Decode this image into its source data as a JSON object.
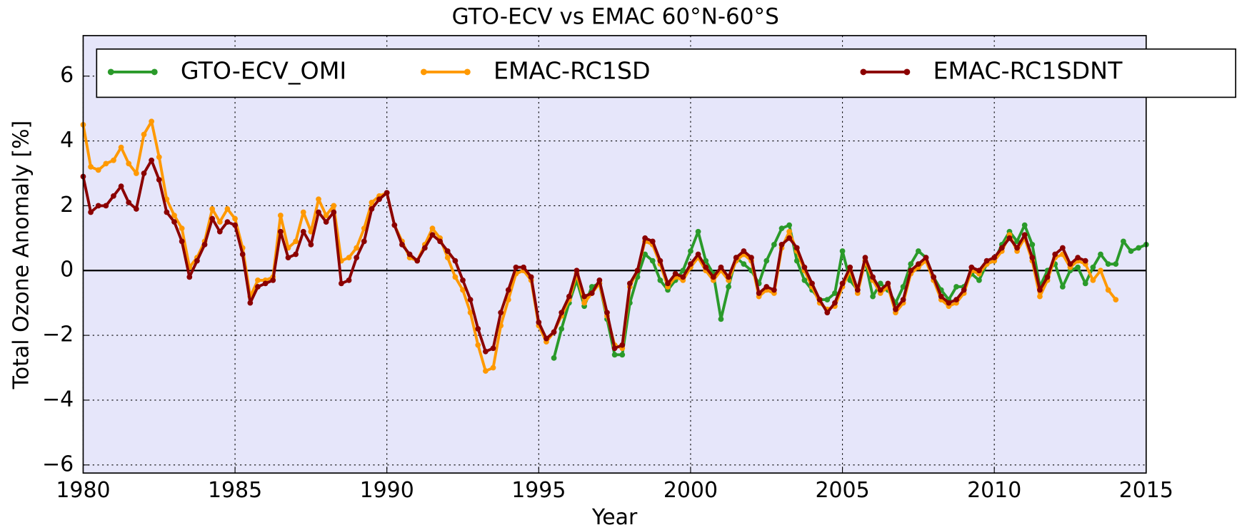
{
  "chart_data": {
    "type": "line",
    "title": "GTO-ECV vs EMAC 60°N-60°S",
    "x_label": "Year",
    "y_label": "Total Ozone Anomaly [%]",
    "xlim": [
      1980,
      2015
    ],
    "ylim": [
      -6.25,
      7.25
    ],
    "xticks": [
      1980,
      1985,
      1990,
      1995,
      2000,
      2005,
      2010,
      2015
    ],
    "yticks": [
      {
        "value": -6,
        "label": "−6"
      },
      {
        "value": -4,
        "label": "−4"
      },
      {
        "value": -2,
        "label": "−2"
      },
      0,
      2,
      4,
      6
    ],
    "grid": true,
    "legend": "upper center",
    "background": "#e6e6fa",
    "x": [
      1980,
      1980.25,
      1980.5,
      1980.75,
      1981,
      1981.25,
      1981.5,
      1981.75,
      1982,
      1982.25,
      1982.5,
      1982.75,
      1983,
      1983.25,
      1983.5,
      1983.75,
      1984,
      1984.25,
      1984.5,
      1984.75,
      1985,
      1985.25,
      1985.5,
      1985.75,
      1986,
      1986.25,
      1986.5,
      1986.75,
      1987,
      1987.25,
      1987.5,
      1987.75,
      1988,
      1988.25,
      1988.5,
      1988.75,
      1989,
      1989.25,
      1989.5,
      1989.75,
      1990,
      1990.25,
      1990.5,
      1990.75,
      1991,
      1991.25,
      1991.5,
      1991.75,
      1992,
      1992.25,
      1992.5,
      1992.75,
      1993,
      1993.25,
      1993.5,
      1993.75,
      1994,
      1994.25,
      1994.5,
      1994.75,
      1995,
      1995.25,
      1995.5,
      1995.75,
      1996,
      1996.25,
      1996.5,
      1996.75,
      1997,
      1997.25,
      1997.5,
      1997.75,
      1998,
      1998.25,
      1998.5,
      1998.75,
      1999,
      1999.25,
      1999.5,
      1999.75,
      2000,
      2000.25,
      2000.5,
      2000.75,
      2001,
      2001.25,
      2001.5,
      2001.75,
      2002,
      2002.25,
      2002.5,
      2002.75,
      2003,
      2003.25,
      2003.5,
      2003.75,
      2004,
      2004.25,
      2004.5,
      2004.75,
      2005,
      2005.25,
      2005.5,
      2005.75,
      2006,
      2006.25,
      2006.5,
      2006.75,
      2007,
      2007.25,
      2007.5,
      2007.75,
      2008,
      2008.25,
      2008.5,
      2008.75,
      2009,
      2009.25,
      2009.5,
      2009.75,
      2010,
      2010.25,
      2010.5,
      2010.75,
      2011,
      2011.25,
      2011.5,
      2011.75,
      2012,
      2012.25,
      2012.5,
      2012.75,
      2013,
      2013.25,
      2013.5,
      2013.75,
      2014,
      2014.25,
      2014.5,
      2014.75,
      2015
    ],
    "series": [
      {
        "name": "GTO-ECV_OMI",
        "color": "#2a9a2a",
        "values": [
          null,
          null,
          null,
          null,
          null,
          null,
          null,
          null,
          null,
          null,
          null,
          null,
          null,
          null,
          null,
          null,
          null,
          null,
          null,
          null,
          null,
          null,
          null,
          null,
          null,
          null,
          null,
          null,
          null,
          null,
          null,
          null,
          null,
          null,
          null,
          null,
          null,
          null,
          null,
          null,
          null,
          null,
          null,
          null,
          null,
          null,
          null,
          null,
          null,
          null,
          null,
          null,
          null,
          null,
          null,
          null,
          null,
          null,
          null,
          null,
          null,
          null,
          -2.7,
          -1.8,
          -1.0,
          -0.3,
          -1.1,
          -0.5,
          -0.4,
          -1.5,
          -2.6,
          -2.6,
          -1.0,
          -0.2,
          0.5,
          0.3,
          -0.3,
          -0.6,
          -0.3,
          0.0,
          0.6,
          1.2,
          0.3,
          -0.1,
          -1.5,
          -0.5,
          0.4,
          0.2,
          0.0,
          -0.4,
          0.3,
          0.8,
          1.3,
          1.4,
          0.3,
          -0.3,
          -0.6,
          -0.9,
          -0.9,
          -0.7,
          0.6,
          -0.3,
          -0.6,
          0.3,
          -0.8,
          -0.4,
          -0.6,
          -1.0,
          -0.5,
          0.2,
          0.6,
          0.4,
          -0.2,
          -0.6,
          -0.9,
          -0.5,
          -0.5,
          -0.1,
          -0.3,
          0.2,
          0.3,
          0.8,
          1.2,
          0.9,
          1.4,
          0.8,
          -0.5,
          0.0,
          0.2,
          -0.5,
          0.0,
          0.1,
          -0.4,
          0.1,
          0.5,
          0.2,
          0.2,
          0.9,
          0.6,
          0.7,
          0.8
        ]
      },
      {
        "name": "EMAC-RC1SD",
        "color": "#ff9900",
        "values": [
          4.5,
          3.2,
          3.1,
          3.3,
          3.4,
          3.8,
          3.3,
          3.0,
          4.2,
          4.6,
          3.5,
          2.2,
          1.7,
          1.3,
          0.1,
          0.4,
          0.9,
          1.9,
          1.5,
          1.9,
          1.6,
          0.7,
          -0.8,
          -0.3,
          -0.3,
          -0.2,
          1.7,
          0.7,
          0.9,
          1.8,
          1.2,
          2.2,
          1.7,
          2.0,
          0.3,
          0.4,
          0.7,
          1.3,
          2.1,
          2.3,
          2.4,
          1.4,
          0.9,
          0.4,
          0.3,
          0.8,
          1.3,
          1.0,
          0.4,
          -0.2,
          -0.6,
          -1.3,
          -2.3,
          -3.1,
          -3.0,
          -1.7,
          -0.9,
          -0.1,
          0.0,
          -0.3,
          -1.7,
          -2.2,
          -1.9,
          -1.4,
          -0.9,
          -0.1,
          -1.0,
          -0.7,
          -0.4,
          -1.4,
          -2.3,
          -2.4,
          -0.5,
          0.0,
          0.9,
          0.8,
          0.2,
          -0.5,
          -0.2,
          -0.3,
          0.1,
          0.4,
          0.0,
          -0.3,
          0.0,
          -0.3,
          0.3,
          0.5,
          0.3,
          -0.8,
          -0.6,
          -0.7,
          0.7,
          1.2,
          0.6,
          0.0,
          -0.5,
          -1.0,
          -1.2,
          -1.1,
          -0.5,
          0.0,
          -0.7,
          0.3,
          -0.3,
          -0.7,
          -0.5,
          -1.3,
          -1.0,
          -0.1,
          0.1,
          0.3,
          -0.3,
          -0.9,
          -1.1,
          -1.0,
          -0.7,
          0.0,
          -0.1,
          0.2,
          0.3,
          0.6,
          1.1,
          0.6,
          1.0,
          0.3,
          -0.8,
          -0.3,
          0.4,
          0.5,
          0.1,
          0.3,
          0.2,
          -0.3,
          0.0,
          -0.6,
          -0.9,
          null,
          null,
          null,
          null
        ]
      },
      {
        "name": "EMAC-RC1SDNT",
        "color": "#8b0000",
        "values": [
          2.9,
          1.8,
          2.0,
          2.0,
          2.3,
          2.6,
          2.1,
          1.9,
          3.0,
          3.4,
          2.8,
          1.8,
          1.5,
          0.9,
          -0.2,
          0.3,
          0.8,
          1.6,
          1.2,
          1.5,
          1.4,
          0.5,
          -1.0,
          -0.5,
          -0.4,
          -0.3,
          1.2,
          0.4,
          0.5,
          1.2,
          0.8,
          1.8,
          1.5,
          1.8,
          -0.4,
          -0.3,
          0.4,
          0.9,
          1.9,
          2.2,
          2.4,
          1.4,
          0.8,
          0.5,
          0.3,
          0.7,
          1.1,
          0.9,
          0.6,
          0.3,
          -0.3,
          -0.9,
          -1.8,
          -2.5,
          -2.4,
          -1.3,
          -0.6,
          0.1,
          0.1,
          -0.2,
          -1.6,
          -2.1,
          -1.9,
          -1.3,
          -0.8,
          0.0,
          -0.8,
          -0.7,
          -0.3,
          -1.3,
          -2.4,
          -2.3,
          -0.4,
          0.0,
          1.0,
          0.9,
          0.3,
          -0.4,
          -0.1,
          -0.2,
          0.2,
          0.5,
          0.1,
          -0.2,
          0.1,
          -0.2,
          0.4,
          0.6,
          0.4,
          -0.7,
          -0.5,
          -0.6,
          0.8,
          1.0,
          0.7,
          0.1,
          -0.4,
          -0.9,
          -1.3,
          -1.0,
          -0.4,
          0.1,
          -0.6,
          0.4,
          -0.2,
          -0.6,
          -0.4,
          -1.2,
          -0.9,
          0.0,
          0.2,
          0.4,
          -0.2,
          -0.8,
          -1.0,
          -0.9,
          -0.6,
          0.1,
          0.0,
          0.3,
          0.4,
          0.7,
          1.0,
          0.7,
          1.1,
          0.4,
          -0.6,
          -0.2,
          0.5,
          0.7,
          0.2,
          0.4,
          0.3,
          null,
          null,
          null,
          null,
          null,
          null,
          null,
          null
        ]
      }
    ]
  }
}
